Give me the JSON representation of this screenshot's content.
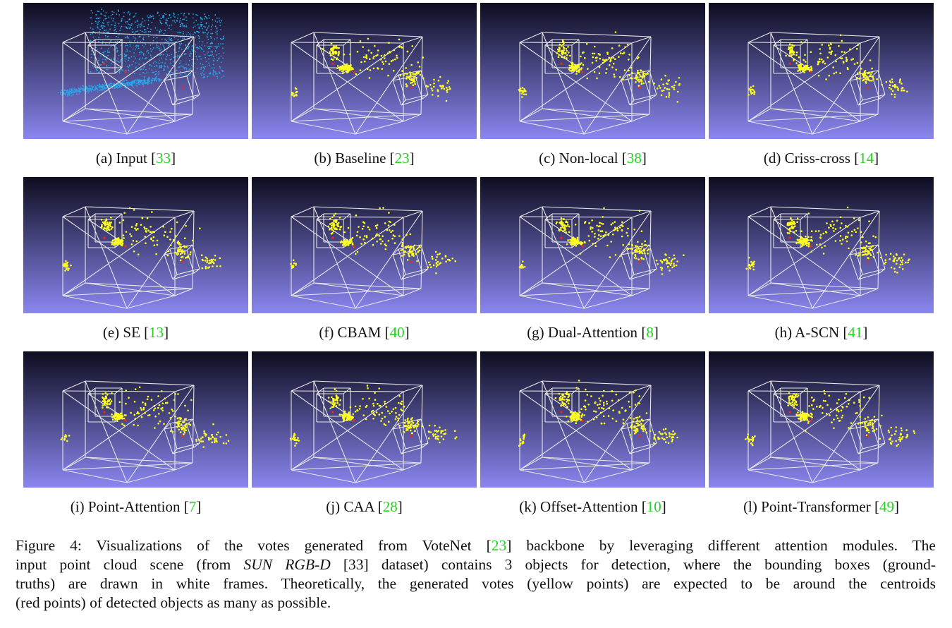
{
  "panels": [
    {
      "label": "(a) Input ",
      "cite": "33",
      "type": "input"
    },
    {
      "label": "(b) Baseline ",
      "cite": "23",
      "type": "votes"
    },
    {
      "label": "(c) Non-local ",
      "cite": "38",
      "type": "votes"
    },
    {
      "label": "(d) Criss-cross ",
      "cite": "14",
      "type": "votes"
    },
    {
      "label": "(e) SE ",
      "cite": "13",
      "type": "votes"
    },
    {
      "label": "(f) CBAM ",
      "cite": "40",
      "type": "votes"
    },
    {
      "label": "(g) Dual-Attention ",
      "cite": "8",
      "type": "votes"
    },
    {
      "label": "(h) A-SCN ",
      "cite": "41",
      "type": "votes"
    },
    {
      "label": "(i) Point-Attention ",
      "cite": "7",
      "type": "votes"
    },
    {
      "label": "(j) CAA ",
      "cite": "28",
      "type": "votes"
    },
    {
      "label": "(k) Offset-Attention ",
      "cite": "10",
      "type": "votes"
    },
    {
      "label": "(l) Point-Transformer ",
      "cite": "49",
      "type": "votes"
    }
  ],
  "colors": {
    "background_top": "#0d0d20",
    "background_bottom": "#8a86f0",
    "frame": "#e6e6e6",
    "votes": "#ffff1e",
    "centroid": "#ff2020",
    "input_points": "#27a7e8",
    "citation": "#1fd31f"
  },
  "figure_caption": {
    "line1_a": "Figure 4: Visualizations of the votes generated from VoteNet [",
    "line1_cite": "23",
    "line1_b": "] backbone by leveraging different attention modules. The",
    "line2_a": "input point cloud scene (from ",
    "line2_em": "SUN RGB-D",
    "line2_b": " [33] dataset) contains 3 objects for detection, where the bounding boxes (ground-",
    "line3": "truths) are drawn in white frames. Theoretically, the generated votes (yellow points) are expected to be around the centroids",
    "line4": "(red points) of detected objects as many as possible."
  }
}
